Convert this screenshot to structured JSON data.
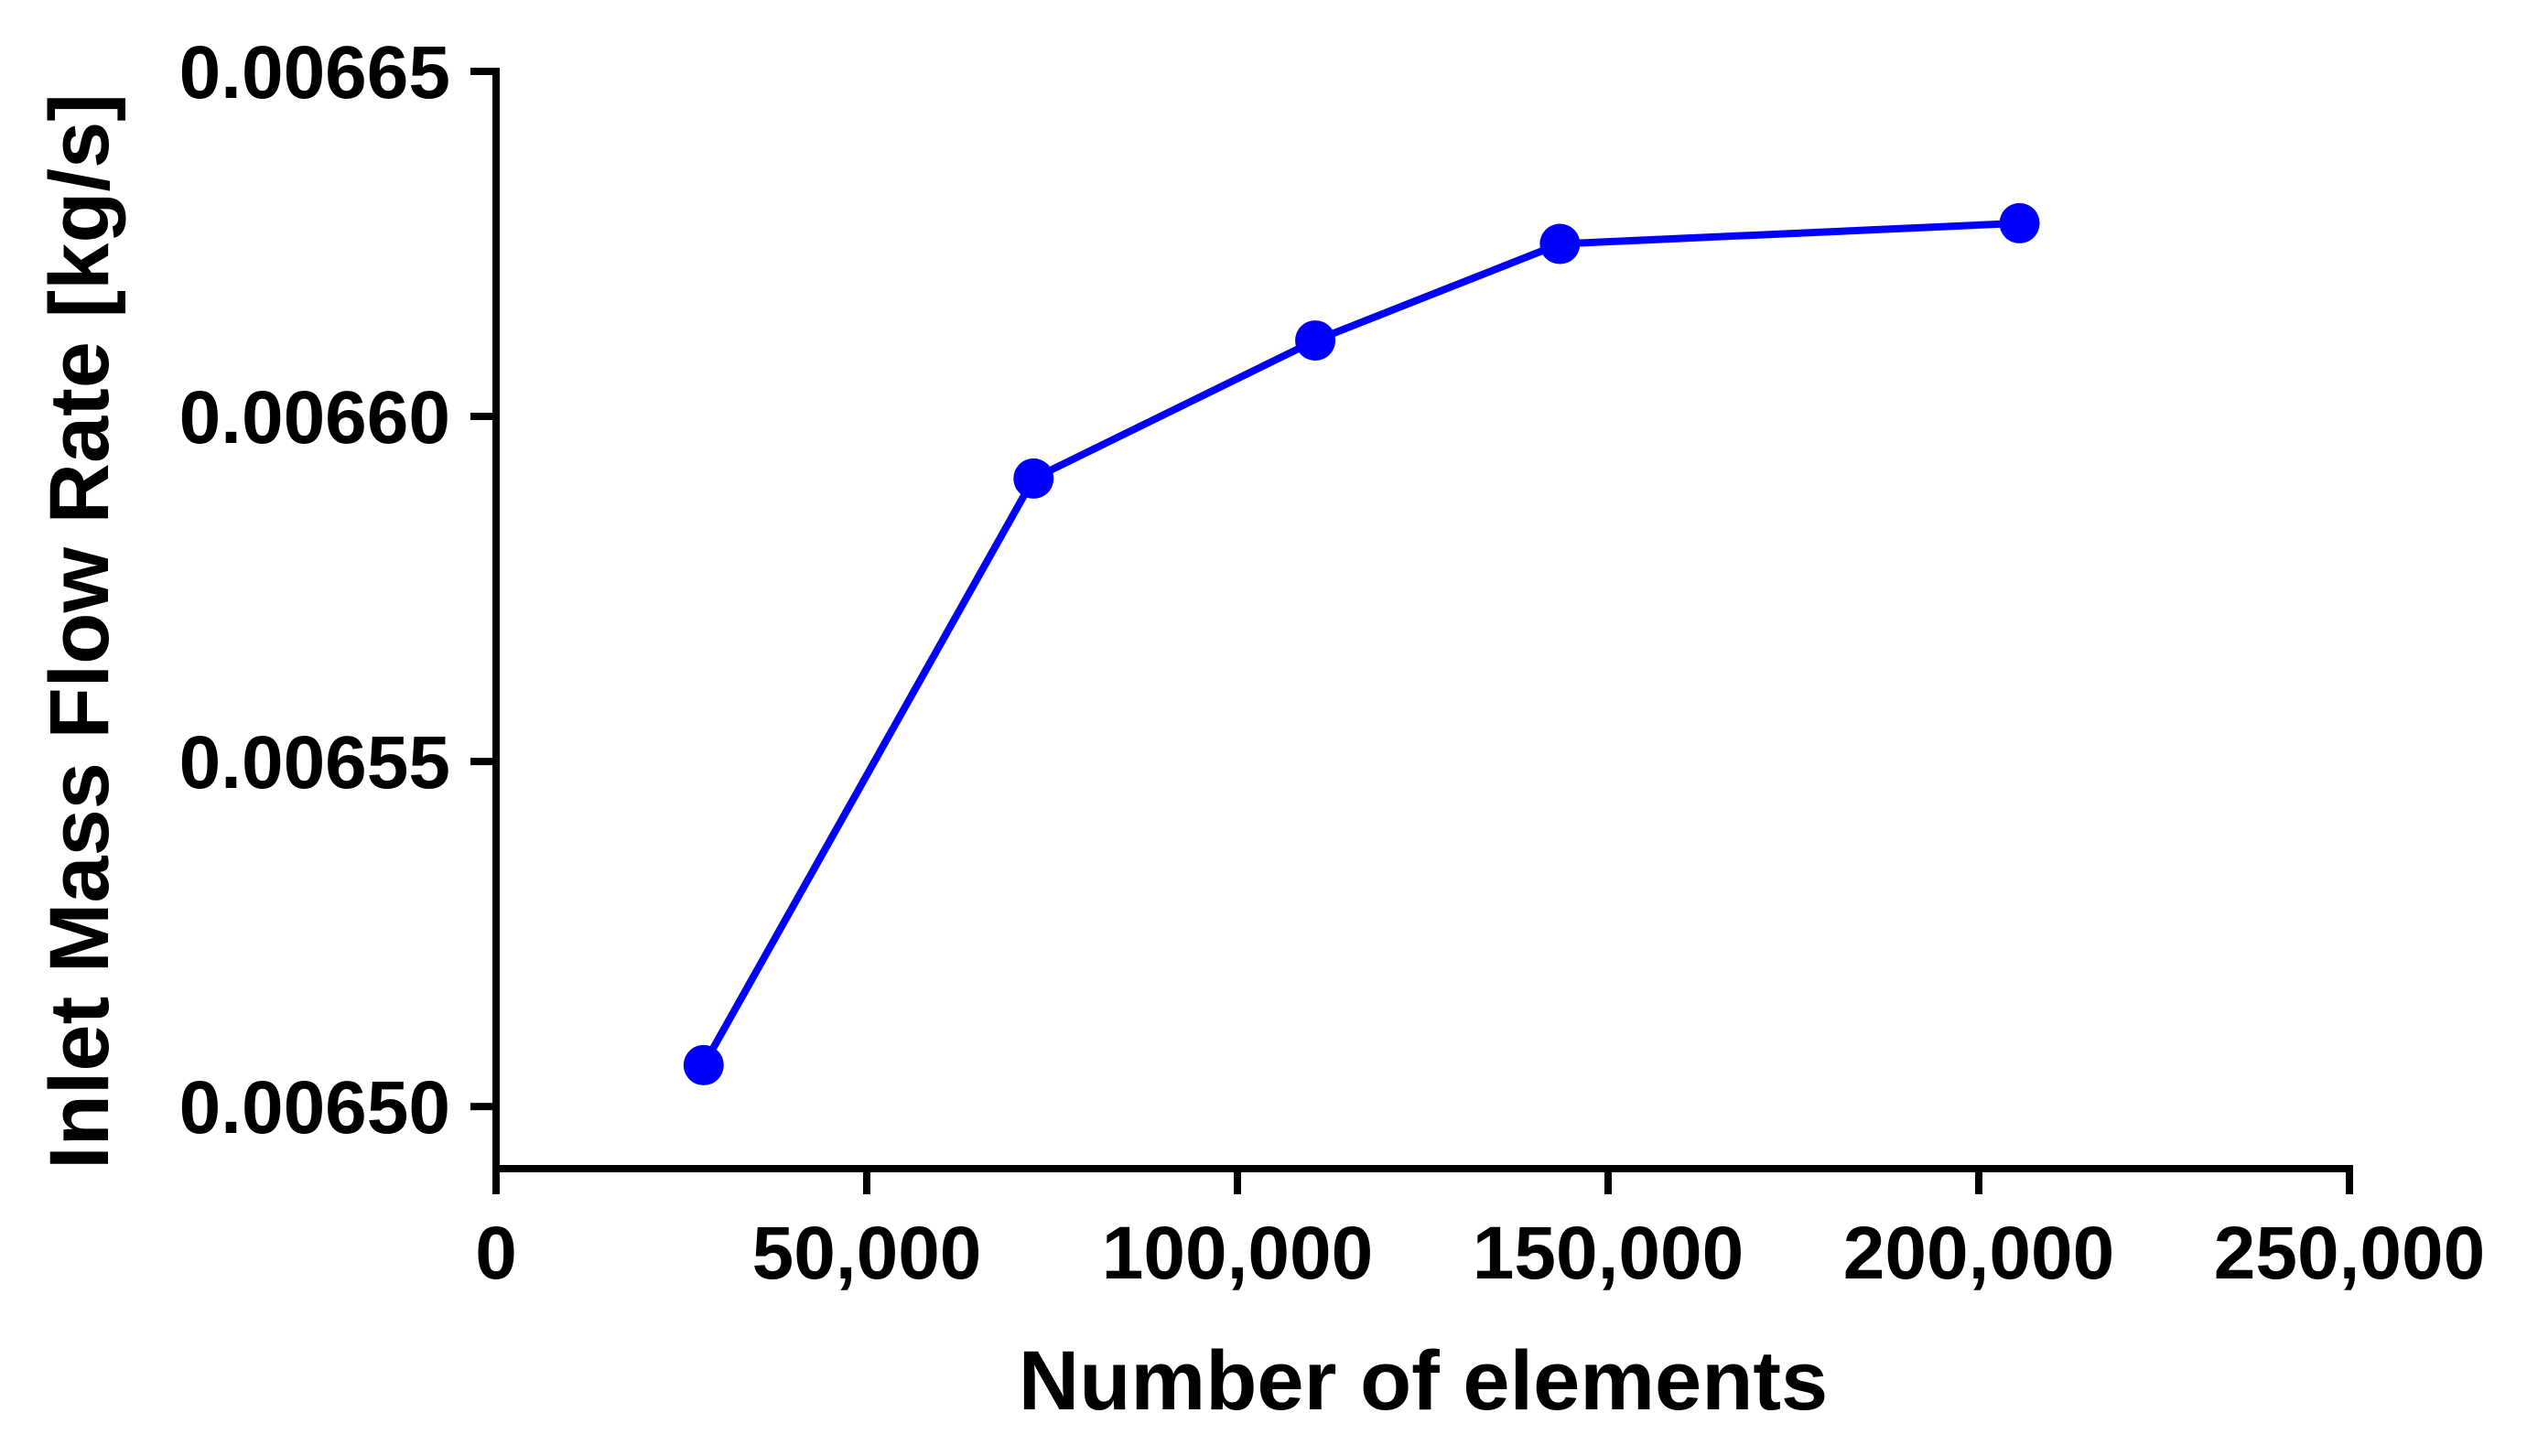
{
  "chart_data": {
    "type": "line",
    "title": "",
    "xlabel": "Number of elements",
    "ylabel": "Inlet Mass Flow Rate [kg/s]",
    "xlim": [
      0,
      250000
    ],
    "ylim": [
      0.006491,
      0.00665
    ],
    "x_ticks": [
      0,
      50000,
      100000,
      150000,
      200000,
      250000
    ],
    "x_tick_labels": [
      "0",
      "50,000",
      "100,000",
      "150,000",
      "200,000",
      "250,000"
    ],
    "y_ticks": [
      0.0065,
      0.00655,
      0.0066,
      0.00665
    ],
    "y_tick_labels": [
      "0.00650",
      "0.00655",
      "0.00660",
      "0.00665"
    ],
    "grid": false,
    "legend": "none",
    "series": [
      {
        "color": "#0000ff",
        "marker": "circle",
        "x": [
          28000,
          72500,
          110500,
          143500,
          205500
        ],
        "y": [
          0.006506,
          0.006591,
          0.006611,
          0.006625,
          0.006628
        ]
      }
    ]
  }
}
